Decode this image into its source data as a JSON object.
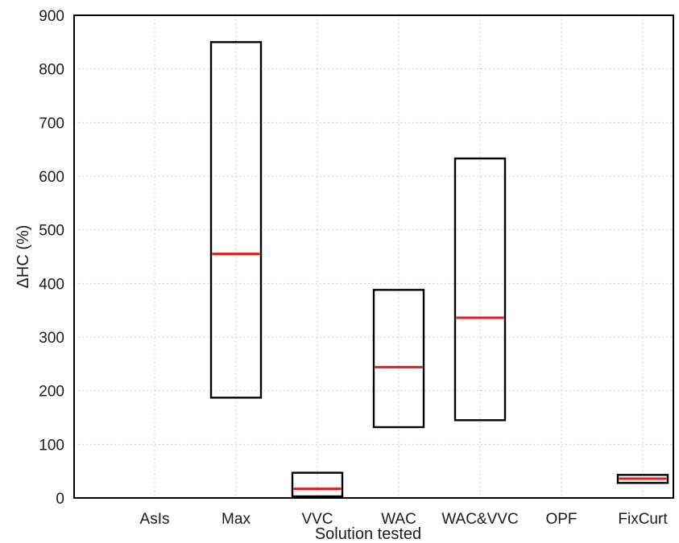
{
  "chart_data": {
    "type": "box",
    "categories": [
      "AsIs",
      "Max",
      "VVC",
      "WAC",
      "WAC&VVC",
      "OPF",
      "FixCurt"
    ],
    "xlabel": "Solution tested",
    "ylabel": "ΔHC (%)",
    "ylim": [
      0,
      900
    ],
    "yticks": [
      0,
      100,
      200,
      300,
      400,
      500,
      600,
      700,
      800,
      900
    ],
    "grid": true,
    "boxes": [
      {
        "category": "AsIs",
        "low": null,
        "high": null,
        "median": null
      },
      {
        "category": "Max",
        "low": 187,
        "high": 850,
        "median": 455
      },
      {
        "category": "VVC",
        "low": 3,
        "high": 47,
        "median": 17
      },
      {
        "category": "WAC",
        "low": 132,
        "high": 388,
        "median": 244
      },
      {
        "category": "WAC&VVC",
        "low": 145,
        "high": 633,
        "median": 336
      },
      {
        "category": "OPF",
        "low": null,
        "high": null,
        "median": null
      },
      {
        "category": "FixCurt",
        "low": 28,
        "high": 43,
        "median": 36
      }
    ],
    "box_color": "#000000",
    "median_color": "#e41a1c"
  }
}
